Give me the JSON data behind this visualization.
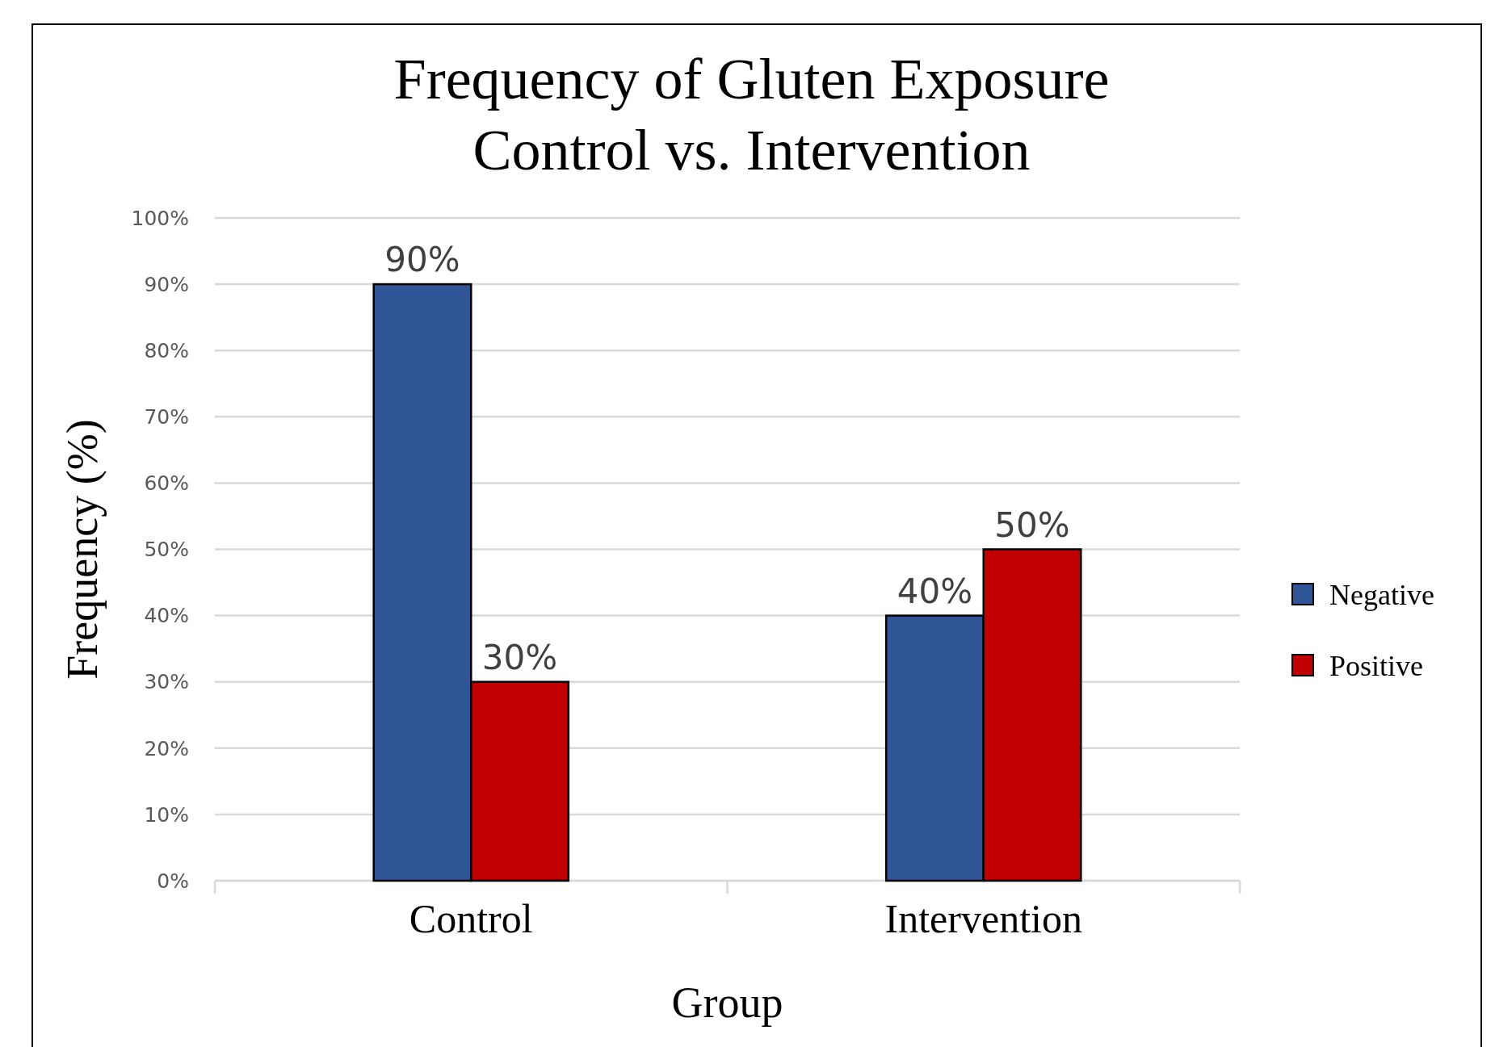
{
  "chart_data": {
    "type": "bar",
    "title": "Frequency of Gluten Exposure\nControl vs. Intervention",
    "xlabel": "Group",
    "ylabel": "Frequency (%)",
    "categories": [
      "Control",
      "Intervention"
    ],
    "series": [
      {
        "name": "Negative",
        "color": "#2f5597",
        "values": [
          90,
          40
        ],
        "value_labels": [
          "90%",
          "40%"
        ]
      },
      {
        "name": "Positive",
        "color": "#c00000",
        "values": [
          30,
          50
        ],
        "value_labels": [
          "30%",
          "50%"
        ]
      }
    ],
    "ylim": [
      0,
      100
    ],
    "yticks": [
      {
        "value": 0,
        "label": "0%"
      },
      {
        "value": 10,
        "label": "10%"
      },
      {
        "value": 20,
        "label": "20%"
      },
      {
        "value": 30,
        "label": "30%"
      },
      {
        "value": 40,
        "label": "40%"
      },
      {
        "value": 50,
        "label": "50%"
      },
      {
        "value": 60,
        "label": "60%"
      },
      {
        "value": 70,
        "label": "70%"
      },
      {
        "value": 80,
        "label": "80%"
      },
      {
        "value": 90,
        "label": "90%"
      },
      {
        "value": 100,
        "label": "100%"
      }
    ],
    "grid": "y",
    "legend": "right"
  }
}
